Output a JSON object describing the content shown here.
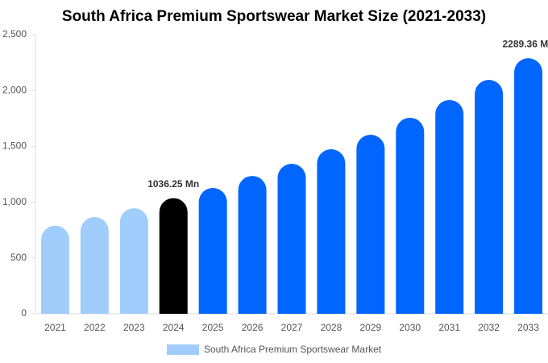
{
  "chart_data": {
    "type": "bar",
    "title": "South Africa Premium Sportswear Market Size (2021-2033)",
    "categories": [
      "2021",
      "2022",
      "2023",
      "2024",
      "2025",
      "2026",
      "2027",
      "2028",
      "2029",
      "2030",
      "2031",
      "2032",
      "2033"
    ],
    "series": [
      {
        "name": "South Africa Premium Sportswear Market",
        "color": "#a0cdfb",
        "values": [
          790,
          867,
          946,
          1036.25,
          1127,
          1235,
          1344,
          1474,
          1604,
          1756,
          1915,
          2095,
          2289.36
        ],
        "value_labels": [
          null,
          null,
          null,
          "1036.25 Mn",
          null,
          null,
          null,
          null,
          null,
          null,
          null,
          null,
          "2289.36 Mn"
        ],
        "colors": [
          "#a0cdfb",
          "#a0cdfb",
          "#a0cdfb",
          "#000000",
          "#0066ff",
          "#0066ff",
          "#0066ff",
          "#0066ff",
          "#0066ff",
          "#0066ff",
          "#0066ff",
          "#0066ff",
          "#0066ff"
        ]
      }
    ],
    "ylim": [
      0,
      2500
    ],
    "yticks": [
      0,
      500,
      {
        "value": 1000,
        "label": "1,000"
      },
      {
        "value": 1500,
        "label": "1,500"
      },
      {
        "value": 2000,
        "label": "2,000"
      },
      {
        "value": 2500,
        "label": "2,500"
      }
    ],
    "grid": false
  }
}
